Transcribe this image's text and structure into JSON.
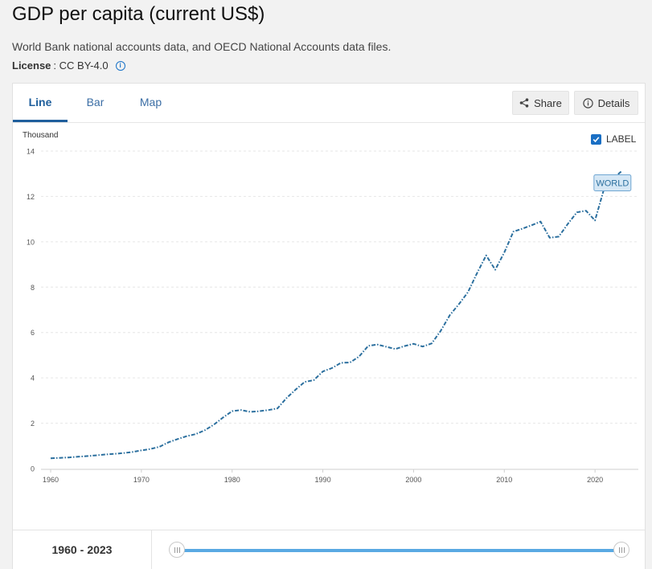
{
  "page": {
    "title": "GDP per capita (current US$)",
    "source": "World Bank national accounts data, and OECD National Accounts data files.",
    "license_label": "License",
    "license_value": ": CC BY-4.0",
    "info_icon": "info-icon"
  },
  "tabs": [
    {
      "label": "Line",
      "active": true
    },
    {
      "label": "Bar",
      "active": false
    },
    {
      "label": "Map",
      "active": false
    }
  ],
  "toolbar": {
    "share_label": "Share",
    "details_label": "Details"
  },
  "label_toggle": {
    "label": "LABEL",
    "checked": true
  },
  "slider": {
    "start": "1960",
    "separator": "-",
    "end": "2023"
  },
  "colors": {
    "line": "#2b6f9e",
    "label_bg": "#d5e7f5",
    "label_border": "#6fa6d2",
    "slider": "#59a9e3"
  },
  "chart_data": {
    "type": "line",
    "title": "",
    "xlabel": "",
    "ylabel": "Thousand",
    "xlim": [
      1960,
      2023
    ],
    "ylim": [
      0,
      14
    ],
    "yticks": [
      "0",
      "2",
      "4",
      "6",
      "8",
      "10",
      "12",
      "14"
    ],
    "xticks": [
      "1960",
      "1970",
      "1980",
      "1990",
      "2000",
      "2010",
      "2020"
    ],
    "grid": "horizontal",
    "series": [
      {
        "name": "WORLD",
        "x": [
          1960,
          1961,
          1962,
          1963,
          1964,
          1965,
          1966,
          1967,
          1968,
          1969,
          1970,
          1971,
          1972,
          1973,
          1974,
          1975,
          1976,
          1977,
          1978,
          1979,
          1980,
          1981,
          1982,
          1983,
          1984,
          1985,
          1986,
          1987,
          1988,
          1989,
          1990,
          1991,
          1992,
          1993,
          1994,
          1995,
          1996,
          1997,
          1998,
          1999,
          2000,
          2001,
          2002,
          2003,
          2004,
          2005,
          2006,
          2007,
          2008,
          2009,
          2010,
          2011,
          2012,
          2013,
          2014,
          2015,
          2016,
          2017,
          2018,
          2019,
          2020,
          2021,
          2022,
          2023
        ],
        "values": [
          0.45,
          0.47,
          0.49,
          0.52,
          0.55,
          0.58,
          0.62,
          0.65,
          0.68,
          0.73,
          0.8,
          0.86,
          0.96,
          1.16,
          1.3,
          1.43,
          1.52,
          1.69,
          1.94,
          2.25,
          2.53,
          2.58,
          2.5,
          2.53,
          2.58,
          2.65,
          3.11,
          3.48,
          3.82,
          3.9,
          4.28,
          4.43,
          4.66,
          4.68,
          4.94,
          5.41,
          5.47,
          5.37,
          5.27,
          5.4,
          5.5,
          5.38,
          5.52,
          6.08,
          6.77,
          7.25,
          7.78,
          8.62,
          9.4,
          8.77,
          9.53,
          10.45,
          10.58,
          10.73,
          10.89,
          10.18,
          10.23,
          10.79,
          11.3,
          11.37,
          10.94,
          12.34,
          12.8,
          13.14
        ]
      }
    ],
    "data_label": {
      "series": "WORLD",
      "text": "WORLD"
    }
  }
}
